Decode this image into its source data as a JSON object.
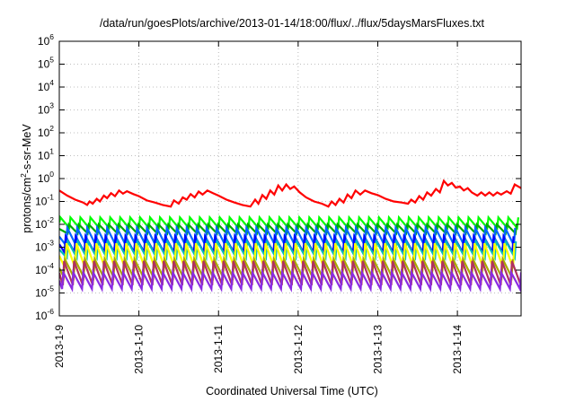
{
  "chart_data": {
    "type": "line",
    "title": "/data/run/goesPlots/archive/2013-01-14/18:00/flux/../flux/5daysMarsFluxes.txt",
    "xlabel": "Coordinated Universal Time (UTC)",
    "ylabel": "protons/cm²-s-sr-MeV",
    "ylabel_parts": {
      "pre": "protons/cm",
      "sup": "2",
      "post": "-s-sr-MeV"
    },
    "y_scale": "log",
    "ylim": [
      1e-06,
      1000000.0
    ],
    "y_ticks": [
      {
        "base": "10",
        "exp": "-6",
        "value": 1e-06
      },
      {
        "base": "10",
        "exp": "-5",
        "value": 1e-05
      },
      {
        "base": "10",
        "exp": "-4",
        "value": 0.0001
      },
      {
        "base": "10",
        "exp": "-3",
        "value": 0.001
      },
      {
        "base": "10",
        "exp": "-2",
        "value": 0.01
      },
      {
        "base": "10",
        "exp": "-1",
        "value": 0.1
      },
      {
        "base": "10",
        "exp": "0",
        "value": 1
      },
      {
        "base": "10",
        "exp": "1",
        "value": 10
      },
      {
        "base": "10",
        "exp": "2",
        "value": 100
      },
      {
        "base": "10",
        "exp": "3",
        "value": 1000
      },
      {
        "base": "10",
        "exp": "4",
        "value": 10000
      },
      {
        "base": "10",
        "exp": "5",
        "value": 100000
      },
      {
        "base": "10",
        "exp": "6",
        "value": 1000000
      }
    ],
    "x_range_days": [
      0,
      5.8
    ],
    "x_ticks": [
      {
        "label": "2013-1-9",
        "day": 0
      },
      {
        "label": "2013-1-10",
        "day": 1
      },
      {
        "label": "2013-1-11",
        "day": 2
      },
      {
        "label": "2013-1-12",
        "day": 3
      },
      {
        "label": "2013-1-13",
        "day": 4
      },
      {
        "label": "2013-1-14",
        "day": 5
      }
    ],
    "grid": true,
    "series": [
      {
        "color": "#ff0000",
        "style": "sawtooth-profile",
        "points": [
          [
            0.0,
            0.3
          ],
          [
            0.1,
            0.18
          ],
          [
            0.2,
            0.12
          ],
          [
            0.3,
            0.09
          ],
          [
            0.35,
            0.07
          ],
          [
            0.38,
            0.1
          ],
          [
            0.42,
            0.08
          ],
          [
            0.47,
            0.13
          ],
          [
            0.51,
            0.1
          ],
          [
            0.56,
            0.18
          ],
          [
            0.6,
            0.14
          ],
          [
            0.65,
            0.23
          ],
          [
            0.7,
            0.17
          ],
          [
            0.75,
            0.3
          ],
          [
            0.8,
            0.22
          ],
          [
            0.85,
            0.28
          ],
          [
            0.93,
            0.21
          ],
          [
            1.0,
            0.17
          ],
          [
            1.1,
            0.11
          ],
          [
            1.2,
            0.09
          ],
          [
            1.3,
            0.07
          ],
          [
            1.4,
            0.06
          ],
          [
            1.44,
            0.11
          ],
          [
            1.5,
            0.08
          ],
          [
            1.55,
            0.15
          ],
          [
            1.6,
            0.12
          ],
          [
            1.65,
            0.21
          ],
          [
            1.7,
            0.15
          ],
          [
            1.75,
            0.27
          ],
          [
            1.8,
            0.2
          ],
          [
            1.86,
            0.3
          ],
          [
            1.93,
            0.23
          ],
          [
            2.0,
            0.18
          ],
          [
            2.1,
            0.12
          ],
          [
            2.2,
            0.09
          ],
          [
            2.3,
            0.07
          ],
          [
            2.4,
            0.06
          ],
          [
            2.46,
            0.12
          ],
          [
            2.5,
            0.08
          ],
          [
            2.55,
            0.19
          ],
          [
            2.6,
            0.13
          ],
          [
            2.65,
            0.3
          ],
          [
            2.7,
            0.2
          ],
          [
            2.75,
            0.5
          ],
          [
            2.8,
            0.3
          ],
          [
            2.85,
            0.55
          ],
          [
            2.9,
            0.35
          ],
          [
            2.95,
            0.45
          ],
          [
            3.02,
            0.25
          ],
          [
            3.1,
            0.15
          ],
          [
            3.2,
            0.1
          ],
          [
            3.3,
            0.08
          ],
          [
            3.38,
            0.06
          ],
          [
            3.42,
            0.1
          ],
          [
            3.47,
            0.07
          ],
          [
            3.52,
            0.13
          ],
          [
            3.57,
            0.09
          ],
          [
            3.62,
            0.2
          ],
          [
            3.67,
            0.14
          ],
          [
            3.72,
            0.3
          ],
          [
            3.78,
            0.2
          ],
          [
            3.84,
            0.3
          ],
          [
            3.92,
            0.23
          ],
          [
            4.0,
            0.19
          ],
          [
            4.1,
            0.13
          ],
          [
            4.2,
            0.1
          ],
          [
            4.3,
            0.09
          ],
          [
            4.38,
            0.08
          ],
          [
            4.42,
            0.12
          ],
          [
            4.47,
            0.09
          ],
          [
            4.52,
            0.17
          ],
          [
            4.57,
            0.12
          ],
          [
            4.62,
            0.25
          ],
          [
            4.67,
            0.18
          ],
          [
            4.73,
            0.35
          ],
          [
            4.78,
            0.25
          ],
          [
            4.83,
            0.8
          ],
          [
            4.88,
            0.5
          ],
          [
            4.93,
            0.65
          ],
          [
            4.98,
            0.4
          ],
          [
            5.03,
            0.45
          ],
          [
            5.08,
            0.3
          ],
          [
            5.13,
            0.38
          ],
          [
            5.18,
            0.25
          ],
          [
            5.25,
            0.18
          ],
          [
            5.3,
            0.25
          ],
          [
            5.35,
            0.18
          ],
          [
            5.4,
            0.25
          ],
          [
            5.45,
            0.18
          ],
          [
            5.5,
            0.25
          ],
          [
            5.55,
            0.2
          ],
          [
            5.62,
            0.28
          ],
          [
            5.67,
            0.22
          ],
          [
            5.72,
            0.55
          ],
          [
            5.8,
            0.38
          ]
        ]
      },
      {
        "color": "#00ff00",
        "style": "sawtooth",
        "peak": 0.02,
        "trough": 0.007,
        "period_days": 0.125,
        "phase_days": 0.0
      },
      {
        "color": "#00aa00",
        "style": "sawtooth",
        "peak": 0.01,
        "trough": 0.004,
        "period_days": 0.125,
        "phase_days": 0.02
      },
      {
        "color": "#0066ff",
        "style": "sawtooth",
        "peak": 0.007,
        "trough": 0.0012,
        "period_days": 0.125,
        "phase_days": 0.04
      },
      {
        "color": "#0000ff",
        "style": "sawtooth",
        "peak": 0.003,
        "trough": 0.0006,
        "period_days": 0.125,
        "phase_days": 0.06
      },
      {
        "color": "#00bbbb",
        "style": "sawtooth",
        "peak": 0.0018,
        "trough": 0.00035,
        "period_days": 0.125,
        "phase_days": 0.03
      },
      {
        "color": "#ffff00",
        "style": "sawtooth",
        "peak": 0.0015,
        "trough": 0.00012,
        "period_days": 0.125,
        "phase_days": 0.05
      },
      {
        "color": "#aaaa00",
        "style": "sawtooth",
        "peak": 0.0003,
        "trough": 5e-05,
        "period_days": 0.125,
        "phase_days": 0.07
      },
      {
        "color": "#b03060",
        "style": "sawtooth",
        "peak": 0.00025,
        "trough": 2.2e-05,
        "period_days": 0.125,
        "phase_days": 0.08
      },
      {
        "color": "#8a2be2",
        "style": "sawtooth",
        "peak": 8e-05,
        "trough": 1.5e-05,
        "period_days": 0.125,
        "phase_days": 0.09
      }
    ]
  }
}
